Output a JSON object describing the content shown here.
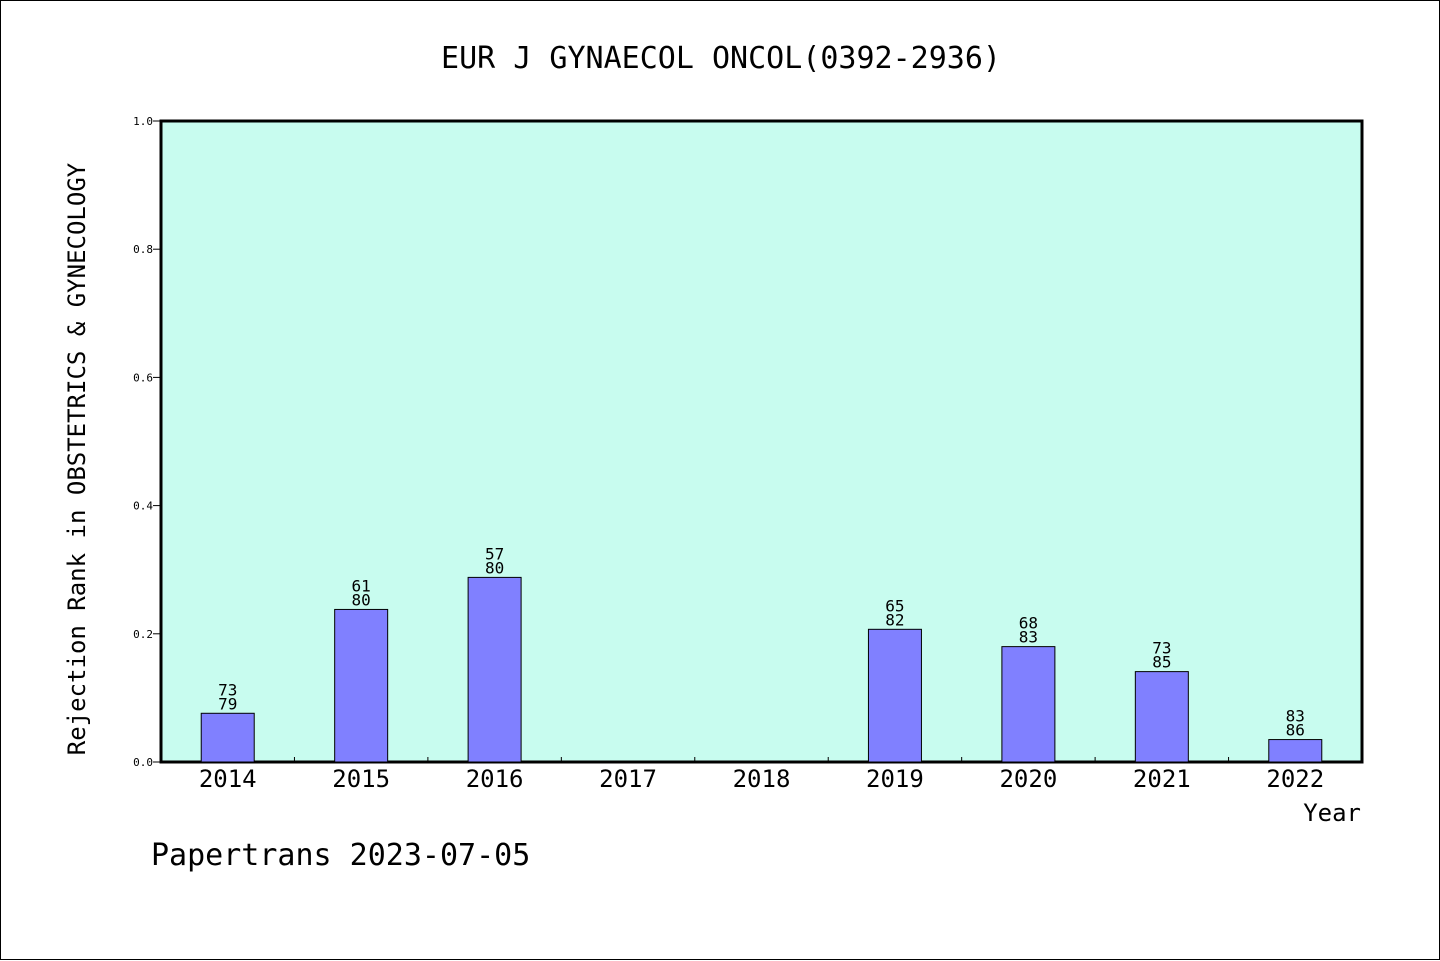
{
  "chart_data": {
    "type": "bar",
    "title": "EUR J GYNAECOL ONCOL(0392-2936)",
    "xlabel": "Year",
    "ylabel": "Rejection Rank in OBSTETRICS & GYNECOLOGY",
    "footer": "Papertrans 2023-07-05",
    "categories": [
      "2014",
      "2015",
      "2016",
      "2017",
      "2018",
      "2019",
      "2020",
      "2021",
      "2022"
    ],
    "values": [
      0.076,
      0.238,
      0.288,
      null,
      null,
      0.207,
      0.18,
      0.141,
      0.035
    ],
    "labels_top": [
      "73",
      "61",
      "57",
      "",
      "",
      "65",
      "68",
      "73",
      "83"
    ],
    "labels_bottom": [
      "79",
      "80",
      "80",
      "",
      "",
      "82",
      "83",
      "85",
      "86"
    ],
    "ylim": [
      0,
      1.0
    ],
    "yticks": [
      "0.0",
      "0.2",
      "0.4",
      "0.6",
      "0.8",
      "1.0"
    ],
    "grid": false,
    "colors": {
      "plot_background": "#c8fcef",
      "bar_fill": "#8080ff",
      "bar_stroke": "#000000"
    }
  }
}
